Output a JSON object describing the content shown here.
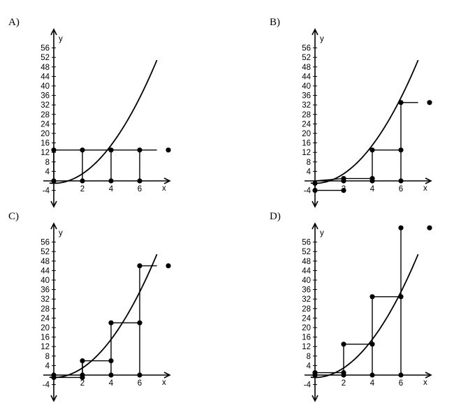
{
  "panels": [
    {
      "id": "A",
      "label": "A)",
      "segments": [
        [
          [
            0,
            0
          ],
          [
            0,
            13
          ]
        ],
        [
          [
            0,
            13
          ],
          [
            2,
            13
          ]
        ],
        [
          [
            2,
            13
          ],
          [
            2,
            0
          ]
        ],
        [
          [
            2,
            13
          ],
          [
            4,
            13
          ]
        ],
        [
          [
            4,
            13
          ],
          [
            4,
            0
          ]
        ],
        [
          [
            4,
            13
          ],
          [
            6,
            13
          ]
        ],
        [
          [
            6,
            13
          ],
          [
            6,
            0
          ]
        ],
        [
          [
            6,
            13
          ],
          [
            7.2,
            13
          ]
        ]
      ],
      "points": [
        [
          0,
          0
        ],
        [
          0,
          13
        ],
        [
          2,
          0
        ],
        [
          2,
          13
        ],
        [
          4,
          0
        ],
        [
          4,
          13
        ],
        [
          6,
          0
        ],
        [
          6,
          13
        ],
        [
          8,
          13
        ]
      ]
    },
    {
      "id": "B",
      "label": "B)",
      "segments": [
        [
          [
            0,
            -1
          ],
          [
            0,
            -4
          ]
        ],
        [
          [
            0,
            -4
          ],
          [
            2,
            -4
          ]
        ],
        [
          [
            0,
            0
          ],
          [
            2,
            1
          ]
        ],
        [
          [
            2,
            1
          ],
          [
            2,
            0
          ]
        ],
        [
          [
            2,
            1
          ],
          [
            4,
            1
          ]
        ],
        [
          [
            4,
            1
          ],
          [
            4,
            13
          ]
        ],
        [
          [
            4,
            13
          ],
          [
            6,
            13
          ]
        ],
        [
          [
            6,
            13
          ],
          [
            6,
            33
          ]
        ],
        [
          [
            6,
            0
          ],
          [
            6,
            13
          ]
        ],
        [
          [
            6,
            33
          ],
          [
            7.2,
            33
          ]
        ]
      ],
      "points": [
        [
          0,
          -1
        ],
        [
          0,
          -4
        ],
        [
          2,
          -4
        ],
        [
          2,
          1
        ],
        [
          2,
          0
        ],
        [
          4,
          0
        ],
        [
          4,
          1
        ],
        [
          4,
          13
        ],
        [
          6,
          0
        ],
        [
          6,
          13
        ],
        [
          6,
          33
        ],
        [
          8,
          33
        ]
      ]
    },
    {
      "id": "C",
      "label": "C)",
      "segments": [
        [
          [
            0,
            0
          ],
          [
            0,
            -1
          ]
        ],
        [
          [
            0,
            -1
          ],
          [
            2,
            -1
          ]
        ],
        [
          [
            2,
            -1
          ],
          [
            2,
            6
          ]
        ],
        [
          [
            2,
            0
          ],
          [
            2,
            6
          ]
        ],
        [
          [
            2,
            6
          ],
          [
            4,
            6
          ]
        ],
        [
          [
            4,
            6
          ],
          [
            4,
            22
          ]
        ],
        [
          [
            4,
            0
          ],
          [
            4,
            6
          ]
        ],
        [
          [
            4,
            22
          ],
          [
            6,
            22
          ]
        ],
        [
          [
            6,
            22
          ],
          [
            6,
            46
          ]
        ],
        [
          [
            6,
            0
          ],
          [
            6,
            22
          ]
        ],
        [
          [
            6,
            46
          ],
          [
            7.2,
            46
          ]
        ]
      ],
      "points": [
        [
          0,
          0
        ],
        [
          0,
          -1
        ],
        [
          2,
          -1
        ],
        [
          2,
          0
        ],
        [
          2,
          6
        ],
        [
          4,
          0
        ],
        [
          4,
          6
        ],
        [
          4,
          22
        ],
        [
          6,
          0
        ],
        [
          6,
          22
        ],
        [
          6,
          46
        ],
        [
          8,
          46
        ]
      ]
    },
    {
      "id": "D",
      "label": "D)",
      "segments": [
        [
          [
            0,
            0
          ],
          [
            0,
            1
          ]
        ],
        [
          [
            0,
            1
          ],
          [
            2,
            1
          ]
        ],
        [
          [
            2,
            1
          ],
          [
            2,
            13
          ]
        ],
        [
          [
            2,
            0
          ],
          [
            2,
            1
          ]
        ],
        [
          [
            2,
            13
          ],
          [
            4,
            13
          ]
        ],
        [
          [
            4,
            13
          ],
          [
            4,
            33
          ]
        ],
        [
          [
            4,
            0
          ],
          [
            4,
            13
          ]
        ],
        [
          [
            4,
            33
          ],
          [
            6,
            33
          ]
        ],
        [
          [
            6,
            33
          ],
          [
            6,
            62
          ]
        ],
        [
          [
            6,
            0
          ],
          [
            6,
            33
          ]
        ]
      ],
      "points": [
        [
          0,
          0
        ],
        [
          0,
          1
        ],
        [
          2,
          0
        ],
        [
          2,
          1
        ],
        [
          2,
          13
        ],
        [
          4,
          0
        ],
        [
          4,
          13
        ],
        [
          4,
          33
        ],
        [
          6,
          0
        ],
        [
          6,
          33
        ],
        [
          6,
          62
        ],
        [
          8,
          62
        ]
      ]
    }
  ],
  "axes": {
    "x_label": "x",
    "y_label": "y",
    "x_ticks": [
      2,
      4,
      6
    ],
    "y_ticks": [
      -4,
      4,
      8,
      12,
      16,
      20,
      24,
      28,
      32,
      36,
      40,
      44,
      48,
      52,
      56
    ]
  },
  "curve": {
    "function": "x^2 - 1",
    "x_range": [
      -0.3,
      7.2
    ]
  }
}
